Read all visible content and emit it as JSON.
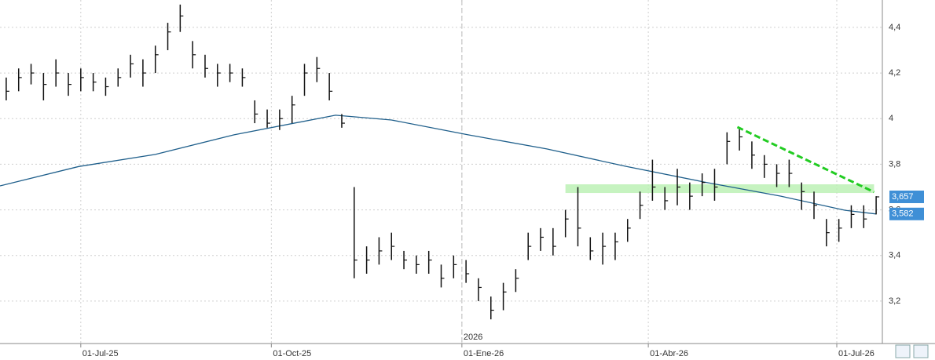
{
  "chart_data": {
    "type": "ohlc",
    "xlim": [
      0,
      426
    ],
    "ylim": [
      3.014,
      4.52
    ],
    "xticks": [
      {
        "value": 39,
        "label": "01-Jul-25"
      },
      {
        "value": 131,
        "label": "01-Oct-25"
      },
      {
        "value": 223,
        "label": "01-Ene-26"
      },
      {
        "value": 313,
        "label": "01-Abr-26"
      },
      {
        "value": 404,
        "label": "01-Jul-26"
      }
    ],
    "yticks": [
      {
        "value": 4.4,
        "label": "4,4"
      },
      {
        "value": 4.2,
        "label": "4,2"
      },
      4,
      {
        "value": 3.8,
        "label": "3,8"
      },
      {
        "value": 3.6,
        "label": "3,6"
      },
      {
        "value": 3.4,
        "label": "3,4"
      },
      {
        "value": 3.2,
        "label": "3,2"
      }
    ],
    "grid": true,
    "color": "#111111",
    "x": [
      3,
      9,
      15,
      21,
      27,
      33,
      39,
      45,
      51,
      57,
      63,
      69,
      75,
      81,
      87,
      93,
      99,
      105,
      111,
      117,
      123,
      129,
      135,
      141,
      147,
      153,
      159,
      165,
      171,
      177,
      183,
      189,
      195,
      201,
      207,
      213,
      219,
      225,
      231,
      237,
      243,
      249,
      255,
      261,
      267,
      273,
      279,
      285,
      291,
      297,
      303,
      309,
      315,
      321,
      327,
      333,
      339,
      345,
      351,
      357,
      363,
      369,
      375,
      381,
      387,
      393,
      399,
      405,
      411,
      417,
      423
    ],
    "high": [
      4.18,
      4.22,
      4.24,
      4.2,
      4.26,
      4.2,
      4.22,
      4.2,
      4.18,
      4.22,
      4.28,
      4.26,
      4.32,
      4.42,
      4.5,
      4.34,
      4.28,
      4.24,
      4.24,
      4.22,
      4.08,
      4.04,
      4.04,
      4.1,
      4.24,
      4.27,
      4.2,
      4.02,
      3.7,
      3.44,
      3.48,
      3.5,
      3.42,
      3.4,
      3.42,
      3.36,
      3.4,
      3.38,
      3.3,
      3.22,
      3.28,
      3.34,
      3.5,
      3.52,
      3.52,
      3.6,
      3.7,
      3.48,
      3.5,
      3.5,
      3.56,
      3.68,
      3.82,
      3.7,
      3.78,
      3.72,
      3.76,
      3.78,
      3.94,
      3.96,
      3.9,
      3.84,
      3.8,
      3.82,
      3.72,
      3.68,
      3.56,
      3.56,
      3.62,
      3.62,
      3.66
    ],
    "low": [
      4.08,
      4.12,
      4.15,
      4.08,
      4.14,
      4.1,
      4.12,
      4.12,
      4.1,
      4.14,
      4.18,
      4.14,
      4.2,
      4.3,
      4.38,
      4.22,
      4.18,
      4.14,
      4.16,
      4.14,
      3.98,
      3.96,
      3.95,
      3.98,
      4.1,
      4.16,
      4.08,
      3.96,
      3.3,
      3.32,
      3.36,
      3.38,
      3.34,
      3.32,
      3.32,
      3.26,
      3.3,
      3.28,
      3.2,
      3.12,
      3.16,
      3.24,
      3.38,
      3.42,
      3.4,
      3.48,
      3.44,
      3.38,
      3.36,
      3.38,
      3.46,
      3.56,
      3.64,
      3.6,
      3.62,
      3.6,
      3.66,
      3.64,
      3.8,
      3.86,
      3.78,
      3.74,
      3.7,
      3.7,
      3.6,
      3.56,
      3.44,
      3.46,
      3.52,
      3.52,
      3.58
    ],
    "close": [
      4.12,
      4.18,
      4.2,
      4.15,
      4.2,
      4.15,
      4.18,
      4.16,
      4.14,
      4.18,
      4.24,
      4.2,
      4.28,
      4.38,
      4.45,
      4.28,
      4.22,
      4.2,
      4.2,
      4.18,
      4.02,
      3.98,
      4,
      4.06,
      4.2,
      4.22,
      4.12,
      3.98,
      3.38,
      3.38,
      3.42,
      3.44,
      3.38,
      3.36,
      3.38,
      3.3,
      3.36,
      3.32,
      3.26,
      3.16,
      3.24,
      3.3,
      3.44,
      3.48,
      3.44,
      3.56,
      3.52,
      3.42,
      3.44,
      3.46,
      3.52,
      3.62,
      3.7,
      3.64,
      3.7,
      3.66,
      3.72,
      3.7,
      3.9,
      3.92,
      3.84,
      3.8,
      3.76,
      3.76,
      3.68,
      3.62,
      3.5,
      3.52,
      3.58,
      3.56,
      3.657
    ],
    "moving_average": {
      "color": "#1f5f8b",
      "x": [
        0,
        38,
        75,
        113,
        162,
        189,
        226,
        264,
        302,
        340,
        377,
        408,
        423
      ],
      "values": [
        3.705,
        3.79,
        3.843,
        3.929,
        4.015,
        3.994,
        3.929,
        3.867,
        3.791,
        3.722,
        3.66,
        3.598,
        3.582
      ]
    },
    "trendline": {
      "color": "#22cc22",
      "x": [
        356,
        422
      ],
      "values": [
        3.963,
        3.678
      ]
    },
    "band": {
      "color": "#b8f0b0",
      "x": [
        273,
        422
      ],
      "y": [
        3.674,
        3.712
      ]
    },
    "year_marker": {
      "x": 223,
      "label": "2026"
    },
    "last_labels": [
      {
        "value": 3.657,
        "label": "3,657"
      },
      {
        "value": 3.582,
        "label": "3,582"
      }
    ]
  }
}
